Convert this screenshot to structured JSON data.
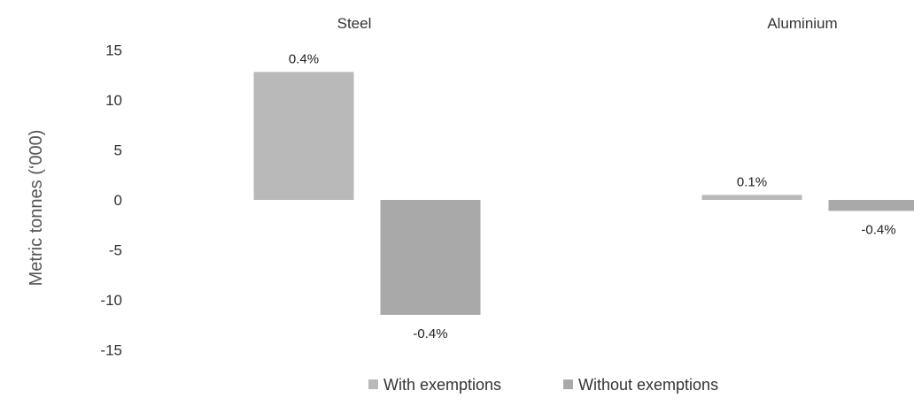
{
  "chart_data": {
    "type": "bar",
    "categories": [
      "Steel",
      "Aluminium"
    ],
    "series": [
      {
        "name": "With exemptions",
        "values": [
          12.8,
          0.5
        ],
        "labels": [
          "0.4%",
          "0.1%"
        ],
        "color": "#b9b9b9"
      },
      {
        "name": "Without exemptions",
        "values": [
          -11.5,
          -1.1
        ],
        "labels": [
          "-0.4%",
          "-0.4%"
        ],
        "color": "#a9a9a9"
      }
    ],
    "ylabel": "Metric tonnes (‘000)",
    "xlabel": "",
    "ylim": [
      -15,
      15
    ],
    "yticks": [
      15,
      10,
      5,
      0,
      -5,
      -10,
      -15
    ],
    "grid": false,
    "legend_position": "bottom"
  }
}
